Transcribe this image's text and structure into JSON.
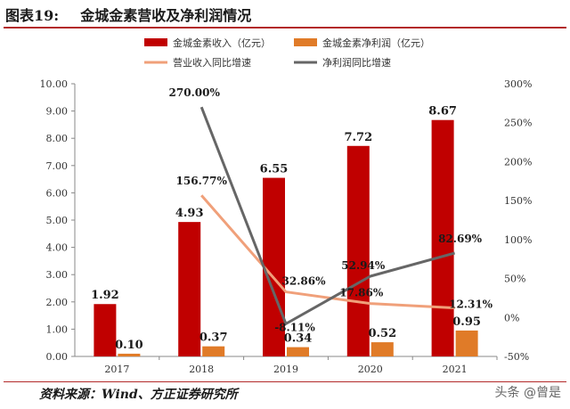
{
  "figure": {
    "number": "图表19:",
    "title": "金城金素营收及净利润情况",
    "source": "资料来源：Wind、方正证券研究所",
    "watermark": "头条 @曾是"
  },
  "chart_data": {
    "type": "bar",
    "categories": [
      "2017",
      "2018",
      "2019",
      "2020",
      "2021"
    ],
    "series": [
      {
        "name": "金城金素收入（亿元）",
        "kind": "bar",
        "axis": "left",
        "color": "#c00000",
        "values": [
          1.92,
          4.93,
          6.55,
          7.72,
          8.67
        ],
        "labels": [
          "1.92",
          "4.93",
          "6.55",
          "7.72",
          "8.67"
        ]
      },
      {
        "name": "金城金素净利润（亿元）",
        "kind": "bar",
        "axis": "left",
        "color": "#e07b28",
        "values": [
          0.1,
          0.37,
          0.34,
          0.52,
          0.95
        ],
        "labels": [
          "0.10",
          "0.37",
          "0.34",
          "0.52",
          "0.95"
        ]
      },
      {
        "name": "营业收入同比增速",
        "kind": "line",
        "axis": "right",
        "color": "#f0a07a",
        "values": [
          null,
          156.77,
          32.86,
          17.86,
          12.31
        ],
        "labels": [
          "",
          "156.77%",
          "32.86%",
          "17.86%",
          "12.31%"
        ]
      },
      {
        "name": "净利润同比增速",
        "kind": "line",
        "axis": "right",
        "color": "#666666",
        "values": [
          null,
          270.0,
          -8.11,
          52.94,
          82.69
        ],
        "labels": [
          "",
          "270.00%",
          "-8.11%",
          "52.94%",
          "82.69%"
        ]
      }
    ],
    "y_left": {
      "min": 0,
      "max": 10,
      "ticks": [
        "0.00",
        "1.00",
        "2.00",
        "3.00",
        "4.00",
        "5.00",
        "6.00",
        "7.00",
        "8.00",
        "9.00",
        "10.00"
      ]
    },
    "y_right": {
      "min": -50,
      "max": 300,
      "ticks": [
        "-50%",
        "0%",
        "50%",
        "100%",
        "150%",
        "200%",
        "250%",
        "300%"
      ]
    },
    "legend_position": "top",
    "grid": false
  }
}
